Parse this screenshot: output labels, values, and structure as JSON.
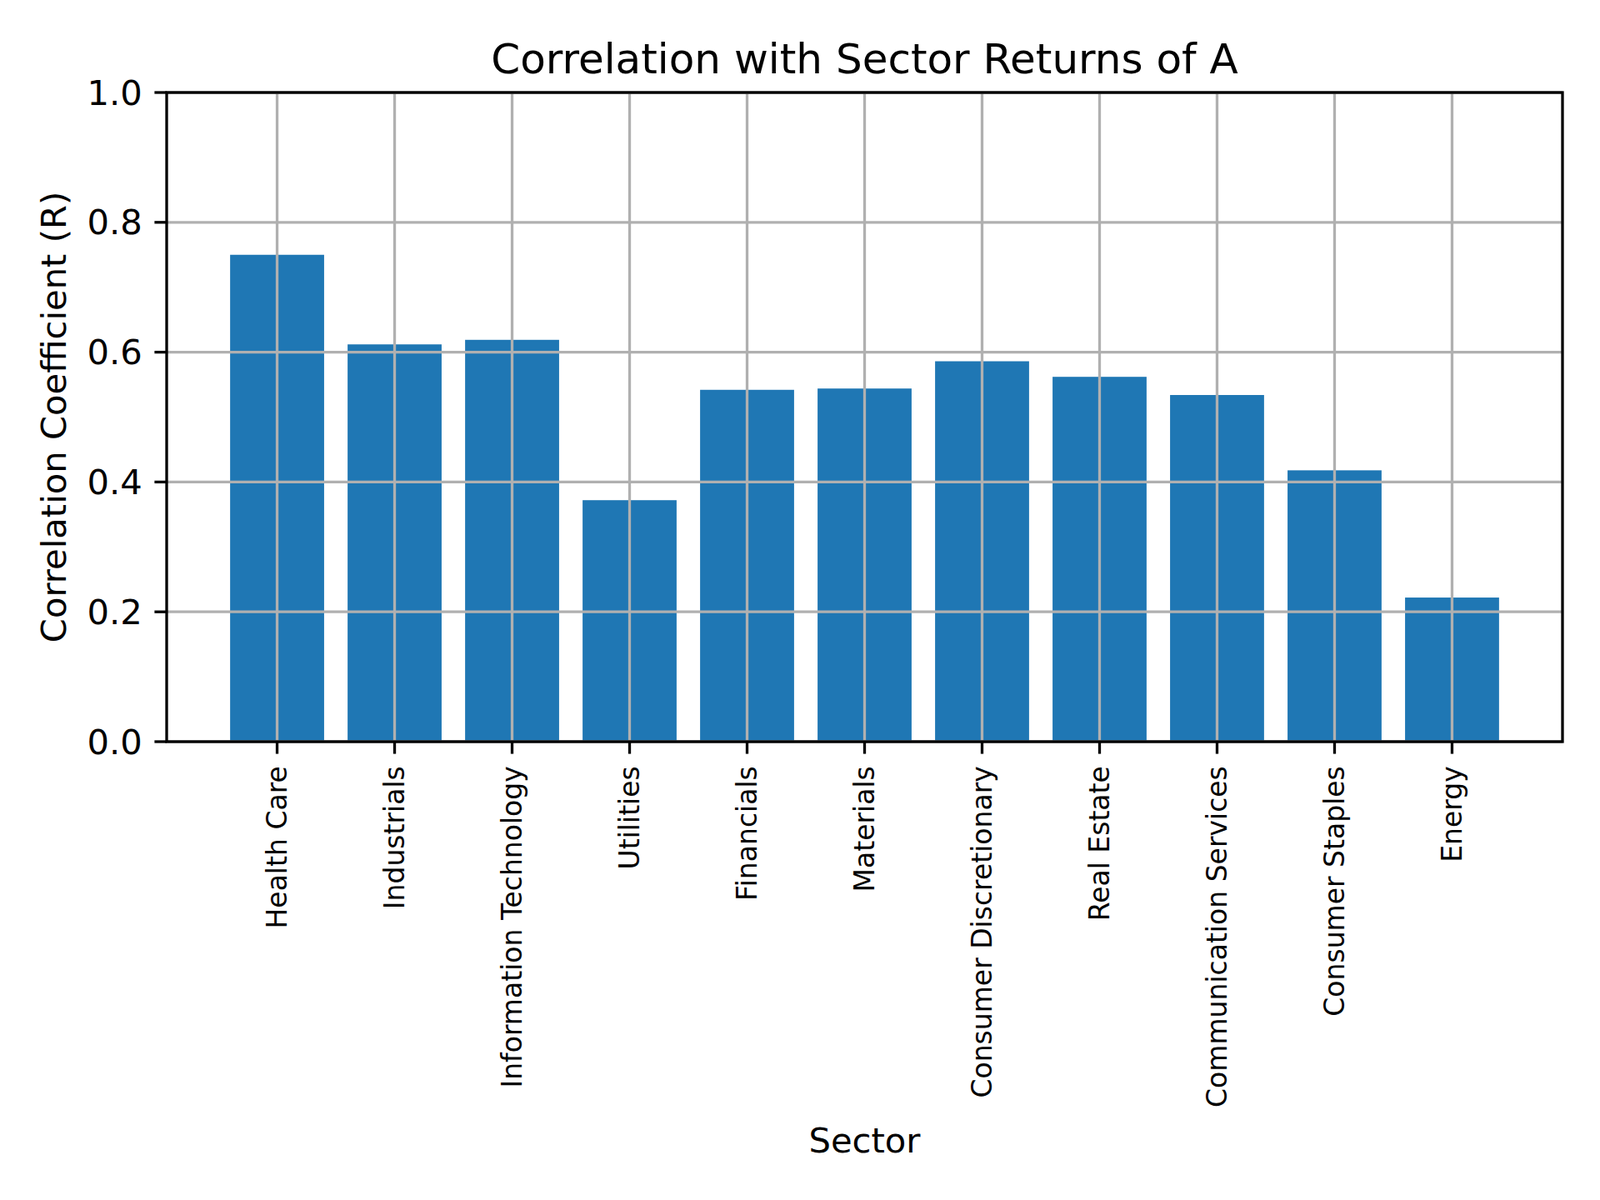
{
  "chart_data": {
    "type": "bar",
    "title": "Correlation with Sector Returns of A",
    "x_label": "Sector",
    "y_label": "Correlation Coefficient (R)",
    "categories": [
      "Health Care",
      "Industrials",
      "Information Technology",
      "Utilities",
      "Financials",
      "Materials",
      "Consumer Discretionary",
      "Real Estate",
      "Communication Services",
      "Consumer Staples",
      "Energy"
    ],
    "values": [
      0.75,
      0.612,
      0.619,
      0.372,
      0.542,
      0.544,
      0.586,
      0.562,
      0.534,
      0.418,
      0.222
    ],
    "color": "#1f77b4",
    "ylim": [
      0,
      1
    ],
    "yticks": [
      {
        "value": 0,
        "label": "0.0"
      },
      0.2,
      0.4,
      0.6,
      0.8,
      {
        "value": 1,
        "label": "1.0"
      }
    ],
    "grid": true
  }
}
